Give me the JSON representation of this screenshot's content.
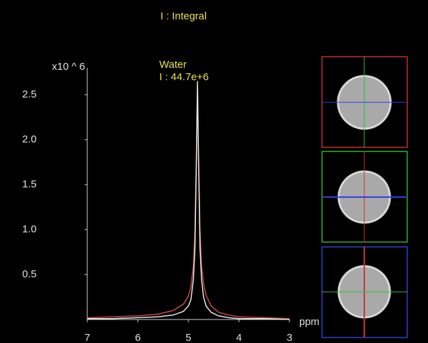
{
  "chart_data": {
    "type": "line",
    "title": "I : Integral",
    "annotations": [
      "Water",
      "I : 44.7e+6"
    ],
    "y_unit": "x10 ^ 6",
    "x_unit": "ppm",
    "x": [
      7,
      6.5,
      6,
      5.6,
      5.3,
      5.1,
      5.0,
      4.95,
      4.9,
      4.87,
      4.84,
      4.82,
      4.8,
      4.77,
      4.74,
      4.7,
      4.65,
      4.55,
      4.4,
      4.2,
      4.0,
      3.5,
      3
    ],
    "series": [
      {
        "color": "#c84a4a",
        "values": [
          0.02,
          0.03,
          0.04,
          0.06,
          0.1,
          0.17,
          0.26,
          0.36,
          0.6,
          1.0,
          1.9,
          2.6,
          1.9,
          1.0,
          0.6,
          0.4,
          0.27,
          0.15,
          0.08,
          0.05,
          0.03,
          0.02,
          0.01
        ]
      },
      {
        "color": "#e8e8e8",
        "values": [
          0.01,
          0.01,
          0.02,
          0.03,
          0.05,
          0.09,
          0.15,
          0.22,
          0.45,
          0.8,
          1.8,
          2.65,
          1.8,
          0.8,
          0.45,
          0.25,
          0.15,
          0.08,
          0.04,
          0.02,
          0.01,
          0.01,
          0.0
        ]
      }
    ],
    "xlim": [
      7,
      3
    ],
    "xticks": [
      7,
      6,
      5,
      4,
      3
    ],
    "ylim": [
      0,
      2.8
    ],
    "yticks": [
      0.5,
      {
        "value": 1,
        "label": "1.0"
      },
      1.5,
      {
        "value": 2,
        "label": "2.0"
      },
      2.5
    ],
    "axis_color": "#cfcfcf",
    "text_color": "#e6e64a"
  }
}
